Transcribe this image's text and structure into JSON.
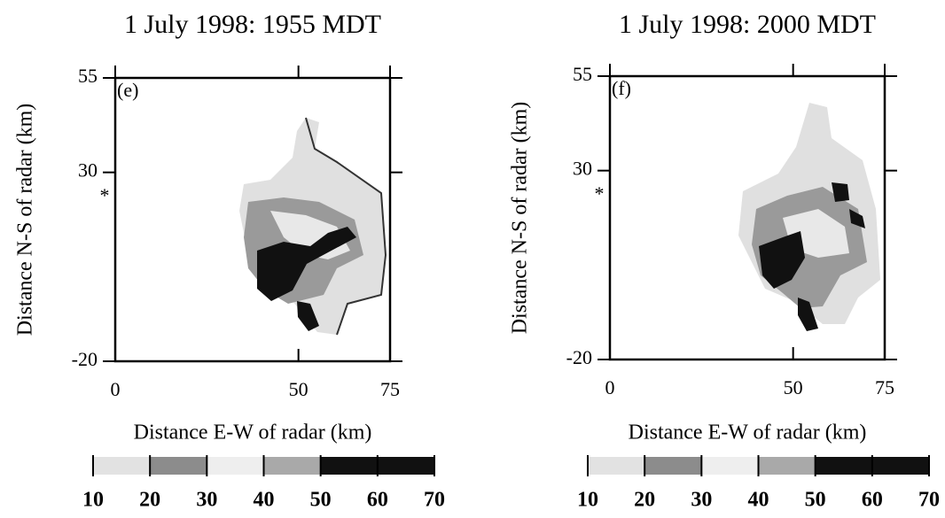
{
  "chart_data": [
    {
      "type": "contour",
      "title": "1 July 1998: 1955 MDT",
      "panel_label": "(e)",
      "x_label": "Distance E-W of radar (km)",
      "y_label": "Distance N-S of radar (km)",
      "xlim": [
        0,
        75
      ],
      "xticks": [
        0,
        50,
        75
      ],
      "ylim": [
        -20,
        55
      ],
      "yticks": [
        -20,
        30,
        55
      ],
      "colorbar": {
        "bins": [
          10,
          20,
          30,
          40,
          50,
          60,
          70
        ],
        "colors": [
          "#e2e2e2",
          "#8c8c8c",
          "#eeeeee",
          "#a9a9a9",
          "#111111",
          "#111111"
        ]
      }
    },
    {
      "type": "contour",
      "title": "1 July 1998: 2000 MDT",
      "panel_label": "(f)",
      "x_label": "Distance E-W of radar (km)",
      "y_label": "Distance N-S of radar (km)",
      "xlim": [
        0,
        75
      ],
      "xticks": [
        0,
        50,
        75
      ],
      "ylim": [
        -20,
        55
      ],
      "yticks": [
        -20,
        30,
        55
      ],
      "colorbar": {
        "bins": [
          10,
          20,
          30,
          40,
          50,
          60,
          70
        ],
        "colors": [
          "#e2e2e2",
          "#8c8c8c",
          "#eeeeee",
          "#a9a9a9",
          "#111111",
          "#111111"
        ]
      }
    }
  ]
}
